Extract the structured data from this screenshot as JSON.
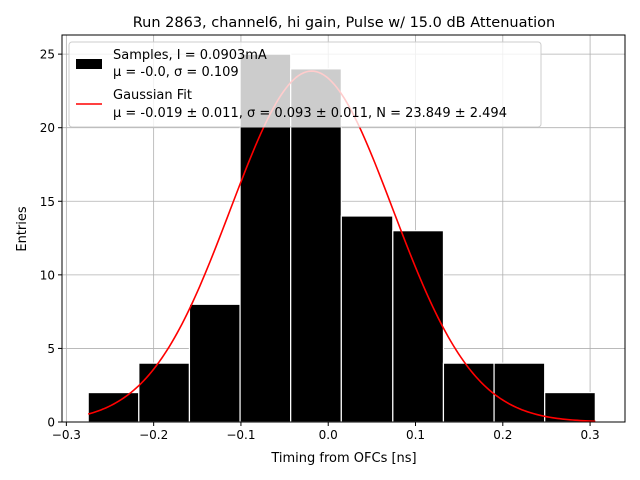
{
  "chart_data": {
    "type": "bar",
    "title": "Run 2863, channel6, hi gain, Pulse w/ 15.0 dB Attenuation",
    "xlabel": "Timing from OFCs [ns]",
    "ylabel": "Entries",
    "xlim": [
      -0.305,
      0.34
    ],
    "ylim": [
      0,
      26.3
    ],
    "grid": true,
    "legend_position": "upper-left",
    "x_ticks": [
      -0.3,
      -0.2,
      -0.1,
      0.0,
      0.1,
      0.2,
      0.3
    ],
    "x_tick_labels": [
      "−0.3",
      "−0.2",
      "−0.1",
      "0.0",
      "0.1",
      "0.2",
      "0.3"
    ],
    "y_ticks": [
      0,
      5,
      10,
      15,
      20,
      25
    ],
    "y_tick_labels": [
      "0",
      "5",
      "10",
      "15",
      "20",
      "25"
    ],
    "histogram": {
      "name_line1": "Samples, I = 0.0903mA",
      "name_line2": "μ = -0.0, σ = 0.109",
      "color": "#000000",
      "edgecolor": "#ffffff",
      "bin_edges": [
        -0.275,
        -0.217,
        -0.159,
        -0.101,
        -0.043,
        0.015,
        0.074,
        0.132,
        0.19,
        0.248,
        0.306
      ],
      "counts": [
        2,
        4,
        8,
        25,
        24,
        14,
        13,
        4,
        4,
        2
      ]
    },
    "fit": {
      "name_line1": "Gaussian Fit",
      "name_line2": "μ = -0.019 ± 0.011, σ = 0.093 ± 0.011, N = 23.849 ± 2.494",
      "color": "#ff0000",
      "mu": -0.019,
      "sigma": 0.093,
      "N": 23.849,
      "x_range": [
        -0.275,
        0.306
      ]
    }
  }
}
